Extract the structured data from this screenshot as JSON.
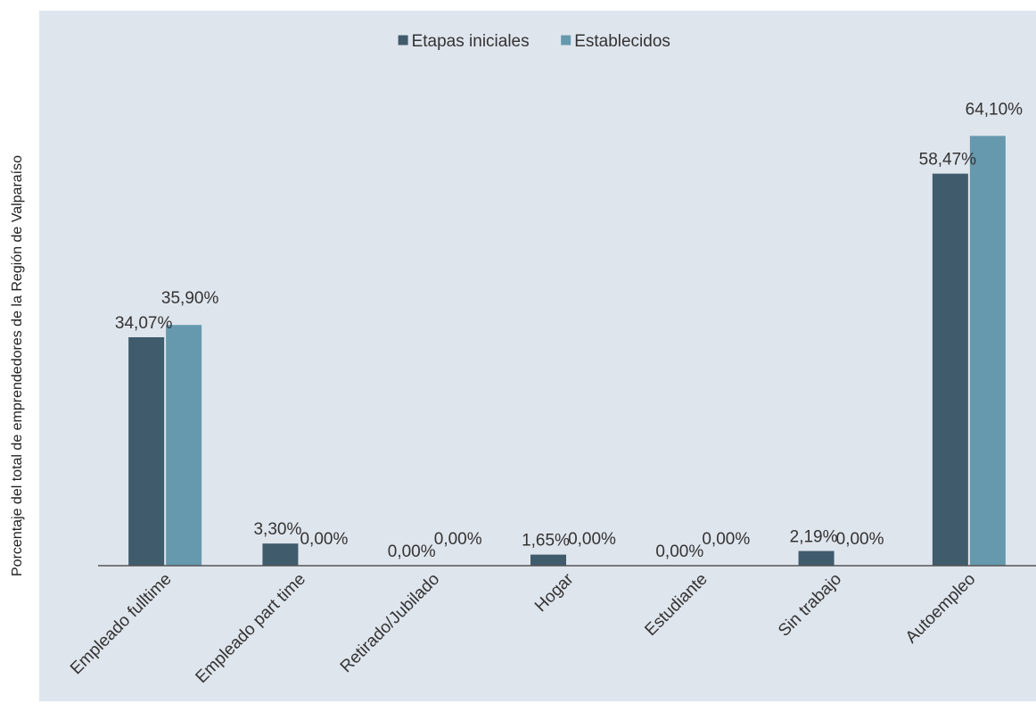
{
  "chart_data": {
    "type": "bar",
    "ylabel": "Porcentaje del total de emprendedores de la Región de Valparaíso",
    "categories": [
      "Empleado fulltime",
      "Empleado part time",
      "Retirado/Jubilado",
      "Hogar",
      "Estudiante",
      "Sin trabajo",
      "Autoempleo"
    ],
    "series": [
      {
        "name": "Etapas iniciales",
        "color": "#3f5b6c",
        "values": [
          34.07,
          3.3,
          0.0,
          1.65,
          0.0,
          2.19,
          58.47
        ],
        "labels": [
          "34,07%",
          "3,30%",
          "0,00%",
          "1,65%",
          "0,00%",
          "2,19%",
          "58,47%"
        ]
      },
      {
        "name": "Establecidos",
        "color": "#6699ad",
        "values": [
          35.9,
          0.0,
          0.0,
          0.0,
          0.0,
          0.0,
          64.1
        ],
        "labels": [
          "35,90%",
          "0,00%",
          "0,00%",
          "0,00%",
          "0,00%",
          "0,00%",
          "64,10%"
        ]
      }
    ],
    "ylim": [
      0,
      70
    ],
    "grid": false,
    "legend_position": "top-center",
    "plot_background": "#dfe5ed",
    "axis_color": "#555555"
  }
}
